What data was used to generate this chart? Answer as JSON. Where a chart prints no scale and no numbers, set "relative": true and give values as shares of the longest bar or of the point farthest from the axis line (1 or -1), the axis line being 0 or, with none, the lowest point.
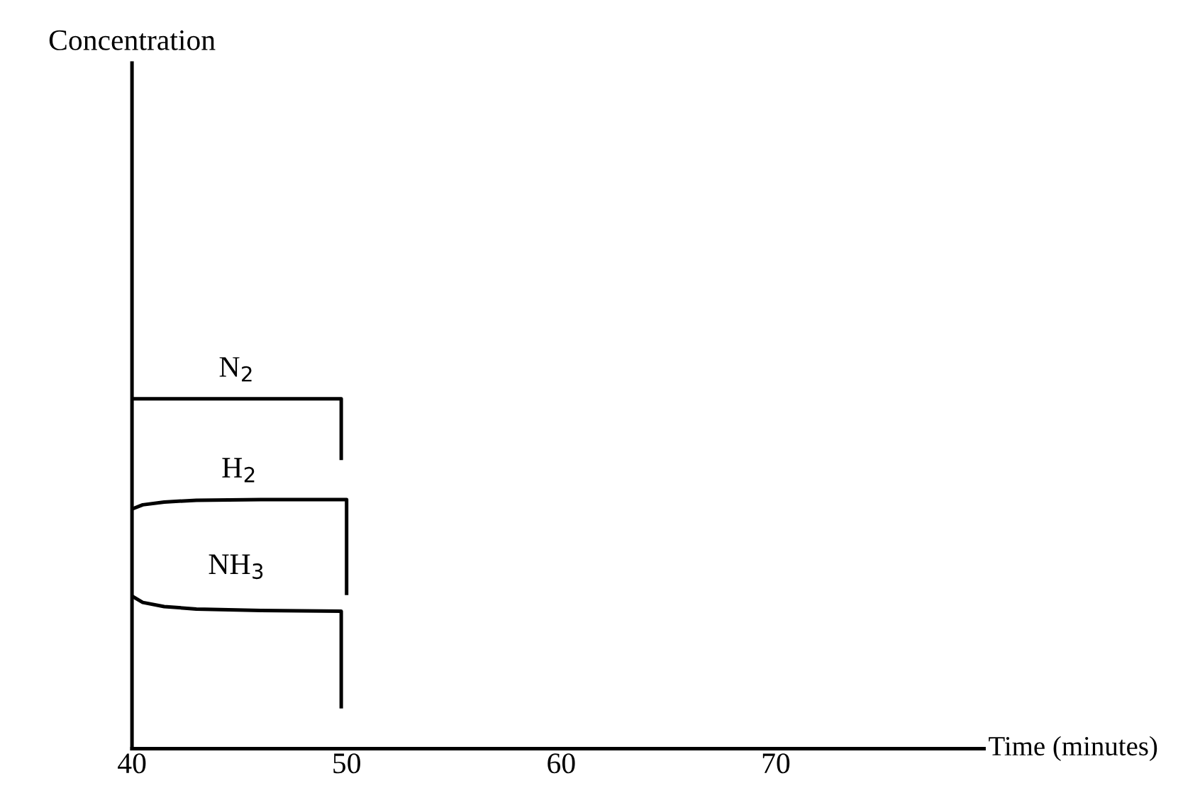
{
  "chart_data": {
    "type": "line",
    "relative": true,
    "annotations": [
      "Concentration"
    ],
    "xlabel": "Time (minutes)",
    "xlim": [
      40,
      79.7
    ],
    "xticks": [
      40,
      50,
      60,
      70
    ],
    "grid": false,
    "legend": false,
    "marker": "none",
    "line_style": "solid",
    "series": [
      {
        "name": "N$_{2}$",
        "color": "#000000",
        "x": [
          40,
          49.75,
          49.75
        ],
        "values": [
          1,
          1,
          0.83
        ]
      },
      {
        "name": "H$_{2}$",
        "color": "#000000",
        "x": [
          40,
          40.5,
          41.5,
          43,
          46,
          50,
          50
        ],
        "values": [
          0.685,
          0.697,
          0.705,
          0.71,
          0.712,
          0.712,
          0.444
        ]
      },
      {
        "name": "NH$_{3}$",
        "color": "#000000",
        "x": [
          40,
          40.5,
          41.5,
          43,
          46,
          49.75,
          49.75
        ],
        "values": [
          0.436,
          0.418,
          0.406,
          0.399,
          0.395,
          0.393,
          0.12
        ]
      }
    ]
  }
}
